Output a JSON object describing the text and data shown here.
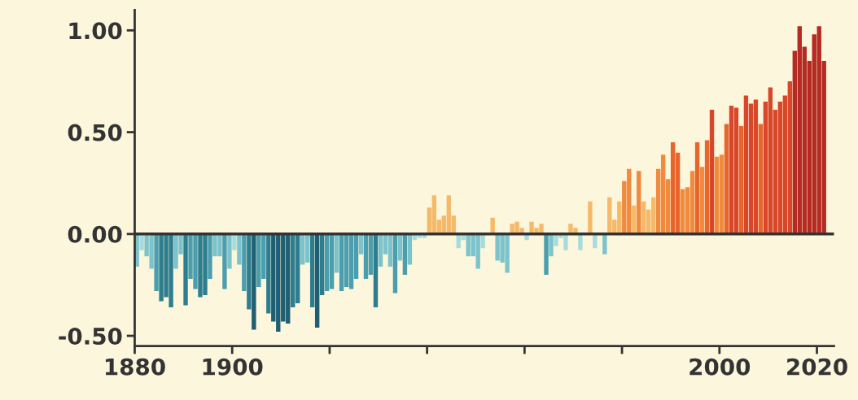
{
  "chart_data": {
    "type": "bar",
    "x": [
      1880,
      1881,
      1882,
      1883,
      1884,
      1885,
      1886,
      1887,
      1888,
      1889,
      1890,
      1891,
      1892,
      1893,
      1894,
      1895,
      1896,
      1897,
      1898,
      1899,
      1900,
      1901,
      1902,
      1903,
      1904,
      1905,
      1906,
      1907,
      1908,
      1909,
      1910,
      1911,
      1912,
      1913,
      1914,
      1915,
      1916,
      1917,
      1918,
      1919,
      1920,
      1921,
      1922,
      1923,
      1924,
      1925,
      1926,
      1927,
      1928,
      1929,
      1930,
      1931,
      1932,
      1933,
      1934,
      1935,
      1936,
      1937,
      1938,
      1939,
      1940,
      1941,
      1942,
      1943,
      1944,
      1945,
      1946,
      1947,
      1948,
      1949,
      1950,
      1951,
      1952,
      1953,
      1954,
      1955,
      1956,
      1957,
      1958,
      1959,
      1960,
      1961,
      1962,
      1963,
      1964,
      1965,
      1966,
      1967,
      1968,
      1969,
      1970,
      1971,
      1972,
      1973,
      1974,
      1975,
      1976,
      1977,
      1978,
      1979,
      1980,
      1981,
      1982,
      1983,
      1984,
      1985,
      1986,
      1987,
      1988,
      1989,
      1990,
      1991,
      1992,
      1993,
      1994,
      1995,
      1996,
      1997,
      1998,
      1999,
      2000,
      2001,
      2002,
      2003,
      2004,
      2005,
      2006,
      2007,
      2008,
      2009,
      2010,
      2011,
      2012,
      2013,
      2014,
      2015,
      2016,
      2017,
      2018,
      2019,
      2020,
      2021
    ],
    "values": [
      -0.16,
      -0.08,
      -0.11,
      -0.17,
      -0.28,
      -0.33,
      -0.31,
      -0.36,
      -0.17,
      -0.1,
      -0.35,
      -0.22,
      -0.27,
      -0.31,
      -0.3,
      -0.22,
      -0.11,
      -0.11,
      -0.27,
      -0.17,
      -0.08,
      -0.15,
      -0.28,
      -0.37,
      -0.47,
      -0.26,
      -0.22,
      -0.39,
      -0.43,
      -0.48,
      -0.43,
      -0.44,
      -0.36,
      -0.34,
      -0.15,
      -0.14,
      -0.36,
      -0.46,
      -0.3,
      -0.28,
      -0.27,
      -0.19,
      -0.28,
      -0.26,
      -0.27,
      -0.22,
      -0.1,
      -0.22,
      -0.2,
      -0.36,
      -0.16,
      -0.1,
      -0.16,
      -0.29,
      -0.13,
      -0.2,
      -0.15,
      -0.03,
      -0.02,
      -0.02,
      0.13,
      0.19,
      0.07,
      0.09,
      0.19,
      0.09,
      -0.07,
      -0.03,
      -0.11,
      -0.11,
      -0.17,
      -0.07,
      null,
      0.08,
      -0.13,
      -0.14,
      -0.19,
      0.05,
      0.06,
      0.03,
      -0.03,
      0.06,
      0.03,
      0.05,
      -0.2,
      -0.11,
      -0.06,
      -0.02,
      -0.08,
      0.05,
      0.03,
      -0.08,
      null,
      0.16,
      -0.07,
      null,
      -0.1,
      0.18,
      0.07,
      0.16,
      0.26,
      0.32,
      0.14,
      0.31,
      0.16,
      0.12,
      0.18,
      0.32,
      0.39,
      0.27,
      0.45,
      0.4,
      0.22,
      0.23,
      0.31,
      0.45,
      0.33,
      0.46,
      0.61,
      0.38,
      0.39,
      0.54,
      0.63,
      0.62,
      0.53,
      0.68,
      0.64,
      0.66,
      0.54,
      0.65,
      0.72,
      0.61,
      0.65,
      0.68,
      0.75,
      0.9,
      1.02,
      0.92,
      0.85,
      0.98,
      1.02,
      0.85
    ],
    "colors": [
      "#7cc3cc",
      "#a8dcdc",
      "#7cc3cc",
      "#7cc3cc",
      "#4a9eae",
      "#2e7d8f",
      "#2e7d8f",
      "#2e7d8f",
      "#7cc3cc",
      "#7cc3cc",
      "#2e7d8f",
      "#4a9eae",
      "#4a9eae",
      "#2e7d8f",
      "#2e7d8f",
      "#4a9eae",
      "#7cc3cc",
      "#7cc3cc",
      "#4a9eae",
      "#7cc3cc",
      "#a8dcdc",
      "#7cc3cc",
      "#4a9eae",
      "#2e7d8f",
      "#1f5f73",
      "#4a9eae",
      "#4a9eae",
      "#2e7d8f",
      "#1f5f73",
      "#1f5f73",
      "#1f5f73",
      "#1f5f73",
      "#2e7d8f",
      "#2e7d8f",
      "#7cc3cc",
      "#7cc3cc",
      "#2e7d8f",
      "#1f5f73",
      "#2e7d8f",
      "#4a9eae",
      "#4a9eae",
      "#7cc3cc",
      "#4a9eae",
      "#4a9eae",
      "#4a9eae",
      "#4a9eae",
      "#7cc3cc",
      "#4a9eae",
      "#4a9eae",
      "#2e7d8f",
      "#7cc3cc",
      "#7cc3cc",
      "#7cc3cc",
      "#4a9eae",
      "#7cc3cc",
      "#4a9eae",
      "#7cc3cc",
      "#a8dcdc",
      "#a8dcdc",
      "#a8dcdc",
      "#f5b96a",
      "#f5b96a",
      "#f5b96a",
      "#f5b96a",
      "#f5b96a",
      "#f5b96a",
      "#a8dcdc",
      "#a8dcdc",
      "#7cc3cc",
      "#7cc3cc",
      "#7cc3cc",
      "#a8dcdc",
      "#f5b96a",
      "#f5b96a",
      "#7cc3cc",
      "#7cc3cc",
      "#7cc3cc",
      "#f5b96a",
      "#f5b96a",
      "#f5b96a",
      "#a8dcdc",
      "#f5b96a",
      "#f5b96a",
      "#f5b96a",
      "#4a9eae",
      "#7cc3cc",
      "#a8dcdc",
      "#a8dcdc",
      "#a8dcdc",
      "#f5b96a",
      "#f5b96a",
      "#a8dcdc",
      "#f5b96a",
      "#f5b96a",
      "#a8dcdc",
      "#a8dcdc",
      "#7cc3cc",
      "#f5b96a",
      "#f5b96a",
      "#f5b96a",
      "#f08a3e",
      "#f08a3e",
      "#f5b96a",
      "#f08a3e",
      "#f5b96a",
      "#f5b96a",
      "#f5b96a",
      "#f08a3e",
      "#f08a3e",
      "#f08a3e",
      "#e8652c",
      "#e8652c",
      "#f08a3e",
      "#f08a3e",
      "#f08a3e",
      "#e8652c",
      "#f08a3e",
      "#e8652c",
      "#d9472a",
      "#f08a3e",
      "#f08a3e",
      "#e8652c",
      "#d9472a",
      "#d9472a",
      "#e8652c",
      "#d9472a",
      "#d9472a",
      "#d9472a",
      "#e8652c",
      "#d9472a",
      "#d9472a",
      "#d9472a",
      "#d9472a",
      "#d9472a",
      "#d9472a",
      "#b52a22",
      "#b52a22",
      "#b52a22",
      "#b52a22",
      "#b52a22",
      "#b52a22",
      "#b52a22"
    ],
    "xlim": [
      1880,
      2023.5
    ],
    "xticks": [
      1880,
      1900,
      {
        "value": 1920,
        "label": null
      },
      {
        "value": 1940,
        "label": null
      },
      {
        "value": 1960,
        "label": null
      },
      {
        "value": 1980,
        "label": null
      },
      2000,
      2020
    ],
    "ylim": [
      -0.55,
      1.1
    ],
    "yticks": [
      {
        "value": -0.5,
        "label": "-0.50"
      },
      {
        "value": 0,
        "label": "0.00"
      },
      {
        "value": 0.5,
        "label": "0.50"
      },
      {
        "value": 1.0,
        "label": "1.00"
      }
    ],
    "ref_lines": [
      {
        "axis": "y",
        "value": 0,
        "color": "#333333"
      }
    ],
    "grid": false,
    "legend": false
  }
}
